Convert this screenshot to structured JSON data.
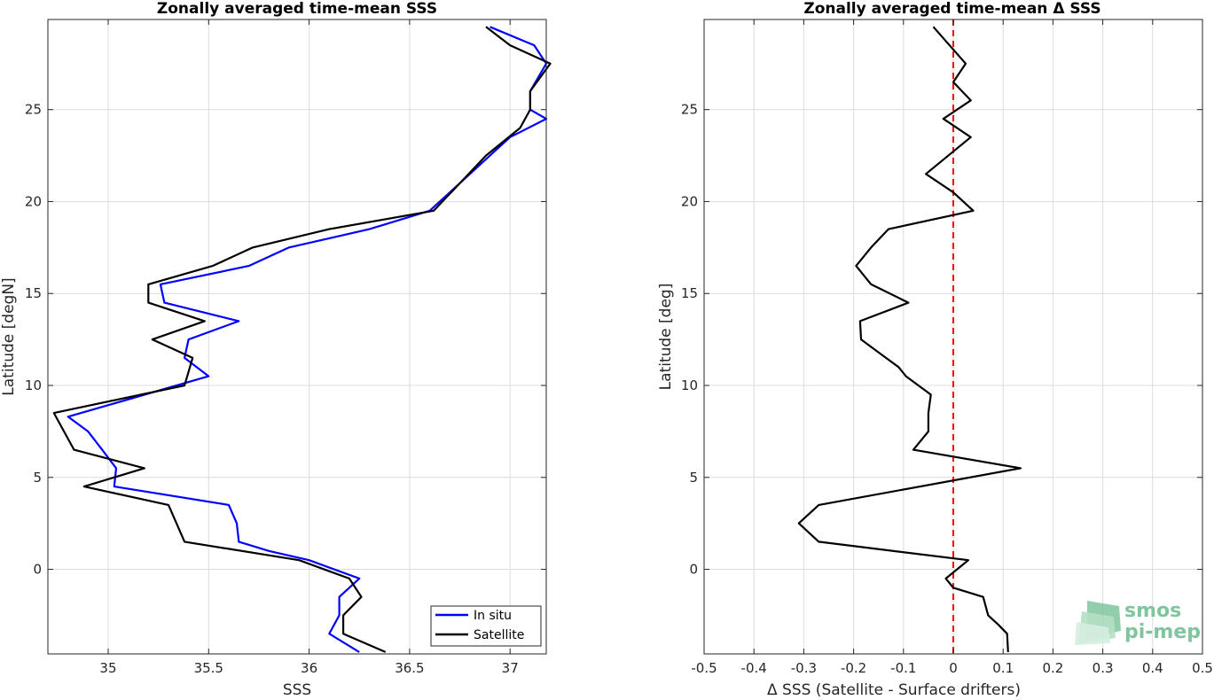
{
  "chart_data": [
    {
      "type": "line",
      "title": "Zonally averaged time-mean SSS",
      "xlabel": "SSS",
      "ylabel": "Latitude [degN]",
      "xlim": [
        34.7,
        37.18
      ],
      "ylim": [
        -4.6,
        29.9
      ],
      "xticks": [
        35,
        35.5,
        36,
        36.5,
        37
      ],
      "xtick_labels": [
        "35",
        "35.5",
        "36",
        "36.5",
        "37"
      ],
      "yticks": [
        0,
        5,
        10,
        15,
        20,
        25
      ],
      "ytick_labels": [
        "0",
        "5",
        "10",
        "15",
        "20",
        "25"
      ],
      "grid": true,
      "legend": "bottom-right",
      "colors": {
        "In situ": "#0000ff",
        "Satellite": "#000000"
      },
      "series": [
        {
          "name": "In situ",
          "color": "#0000ff",
          "points": [
            [
              36.25,
              -4.5
            ],
            [
              36.1,
              -3.5
            ],
            [
              36.15,
              -2.5
            ],
            [
              36.15,
              -1.5
            ],
            [
              36.2,
              -1.0
            ],
            [
              36.25,
              -0.5
            ],
            [
              36.0,
              0.5
            ],
            [
              35.8,
              1.0
            ],
            [
              35.65,
              1.5
            ],
            [
              35.64,
              2.5
            ],
            [
              35.6,
              3.5
            ],
            [
              35.03,
              4.5
            ],
            [
              35.04,
              5.5
            ],
            [
              34.97,
              6.5
            ],
            [
              34.9,
              7.5
            ],
            [
              34.8,
              8.3
            ],
            [
              35.5,
              10.5
            ],
            [
              35.38,
              11.5
            ],
            [
              35.4,
              12.5
            ],
            [
              35.65,
              13.5
            ],
            [
              35.28,
              14.5
            ],
            [
              35.26,
              15.5
            ],
            [
              35.7,
              16.5
            ],
            [
              35.9,
              17.5
            ],
            [
              36.3,
              18.5
            ],
            [
              36.6,
              19.5
            ],
            [
              36.75,
              21.0
            ],
            [
              36.9,
              22.5
            ],
            [
              37.0,
              23.5
            ],
            [
              37.18,
              24.5
            ],
            [
              37.1,
              25.0
            ],
            [
              37.1,
              26.0
            ],
            [
              37.18,
              27.5
            ],
            [
              37.12,
              28.5
            ],
            [
              36.9,
              29.5
            ]
          ]
        },
        {
          "name": "Satellite",
          "color": "#000000",
          "points": [
            [
              36.38,
              -4.5
            ],
            [
              36.17,
              -3.5
            ],
            [
              36.17,
              -2.5
            ],
            [
              36.26,
              -1.5
            ],
            [
              36.2,
              -0.5
            ],
            [
              35.95,
              0.5
            ],
            [
              35.38,
              1.5
            ],
            [
              35.34,
              2.5
            ],
            [
              35.3,
              3.5
            ],
            [
              34.88,
              4.5
            ],
            [
              35.18,
              5.5
            ],
            [
              34.83,
              6.5
            ],
            [
              34.73,
              8.5
            ],
            [
              35.38,
              10.0
            ],
            [
              35.42,
              11.5
            ],
            [
              35.22,
              12.5
            ],
            [
              35.48,
              13.5
            ],
            [
              35.2,
              14.5
            ],
            [
              35.2,
              15.5
            ],
            [
              35.52,
              16.5
            ],
            [
              35.72,
              17.5
            ],
            [
              36.1,
              18.5
            ],
            [
              36.62,
              19.5
            ],
            [
              36.75,
              21.0
            ],
            [
              36.88,
              22.5
            ],
            [
              37.05,
              24.0
            ],
            [
              37.1,
              25.0
            ],
            [
              37.1,
              26.0
            ],
            [
              37.2,
              27.5
            ],
            [
              37.0,
              28.5
            ],
            [
              36.88,
              29.5
            ]
          ]
        }
      ]
    },
    {
      "type": "line",
      "title": "Zonally averaged time-mean Δ SSS",
      "xlabel": "Δ SSS (Satellite - Surface drifters)",
      "ylabel": "Latitude [deg]",
      "xlim": [
        -0.5,
        0.5
      ],
      "ylim": [
        -4.6,
        29.9
      ],
      "xticks": [
        -0.5,
        -0.4,
        -0.3,
        -0.2,
        -0.1,
        0,
        0.1,
        0.2,
        0.3,
        0.4,
        0.5
      ],
      "xtick_labels": [
        "-0.5",
        "-0.4",
        "-0.3",
        "-0.2",
        "-0.1",
        "0",
        "0.1",
        "0.2",
        "0.3",
        "0.4",
        "0.5"
      ],
      "yticks": [
        0,
        5,
        10,
        15,
        20,
        25
      ],
      "ytick_labels": [
        "0",
        "5",
        "10",
        "15",
        "20",
        "25"
      ],
      "grid": true,
      "reference_line": {
        "x": 0,
        "style": "dashed",
        "color": "#ff0000"
      },
      "series": [
        {
          "color": "#000000",
          "points": [
            [
              0.11,
              -4.5
            ],
            [
              0.108,
              -3.5
            ],
            [
              0.09,
              -3.0
            ],
            [
              0.07,
              -2.5
            ],
            [
              0.06,
              -1.5
            ],
            [
              0.0,
              -1.0
            ],
            [
              -0.015,
              -0.5
            ],
            [
              0.03,
              0.5
            ],
            [
              -0.27,
              1.5
            ],
            [
              -0.31,
              2.5
            ],
            [
              -0.27,
              3.5
            ],
            [
              0.135,
              5.5
            ],
            [
              -0.08,
              6.5
            ],
            [
              -0.05,
              7.5
            ],
            [
              -0.05,
              8.5
            ],
            [
              -0.045,
              9.5
            ],
            [
              -0.095,
              10.5
            ],
            [
              -0.11,
              11.0
            ],
            [
              -0.135,
              11.5
            ],
            [
              -0.185,
              12.5
            ],
            [
              -0.187,
              13.5
            ],
            [
              -0.09,
              14.5
            ],
            [
              -0.165,
              15.5
            ],
            [
              -0.195,
              16.5
            ],
            [
              -0.165,
              17.5
            ],
            [
              -0.13,
              18.5
            ],
            [
              0.04,
              19.5
            ],
            [
              0.0,
              20.5
            ],
            [
              -0.055,
              21.5
            ],
            [
              0.035,
              23.5
            ],
            [
              -0.02,
              24.5
            ],
            [
              0.035,
              25.5
            ],
            [
              0.0,
              26.5
            ],
            [
              0.025,
              27.5
            ],
            [
              -0.04,
              29.5
            ]
          ]
        }
      ]
    }
  ],
  "logo": {
    "line1": "smos",
    "line2": "pi-mep"
  }
}
